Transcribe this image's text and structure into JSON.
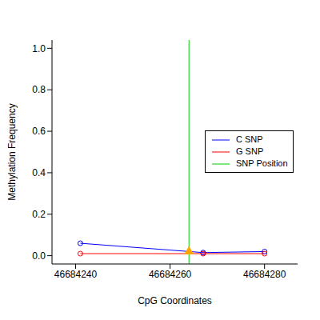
{
  "chart_data": {
    "type": "line",
    "x_label": "CpG Coordinates",
    "y_label": "Methylation Frequency",
    "x": [
      46684241,
      46684267,
      46684280
    ],
    "series": [
      {
        "name": "C SNP",
        "color": "#0000ff",
        "values": [
          0.06,
          0.015,
          0.02
        ],
        "marker": "circle"
      },
      {
        "name": "G SNP",
        "color": "#ff0000",
        "values": [
          0.01,
          0.01,
          0.01
        ],
        "marker": "circle"
      }
    ],
    "snp": {
      "name": "SNP Position",
      "x": 46684264,
      "value": 0.02,
      "color": "#00cc00",
      "marker_color": "#ffa500",
      "marker": "triangle"
    },
    "xlim": [
      46684235,
      46684287
    ],
    "xticks": [
      46684240,
      46684260,
      46684280
    ],
    "ylim": [
      -0.04,
      1.04
    ],
    "yticks": [
      {
        "value": 0,
        "label": "0.0"
      },
      {
        "value": 0.2,
        "label": "0.2"
      },
      {
        "value": 0.4,
        "label": "0.4"
      },
      {
        "value": 0.6,
        "label": "0.6"
      },
      {
        "value": 0.8,
        "label": "0.8"
      },
      {
        "value": 1,
        "label": "1.0"
      }
    ],
    "legend": "right"
  }
}
